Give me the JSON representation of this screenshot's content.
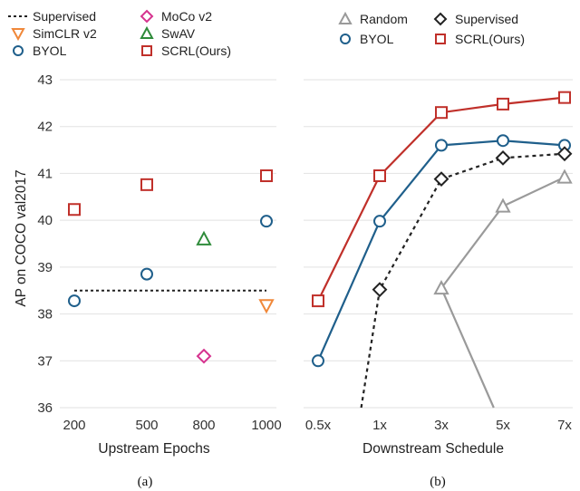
{
  "chart_data": [
    {
      "panel": "(a)",
      "type": "scatter",
      "xlabel": "Upstream Epochs",
      "ylabel": "AP on COCO val2017",
      "x_categories": [
        "200",
        "500",
        "800",
        "1000"
      ],
      "ylim": [
        36,
        43
      ],
      "yticks": [
        "36",
        "37",
        "38",
        "39",
        "40",
        "41",
        "42",
        "43"
      ],
      "grid": "horizontal",
      "legend": [
        {
          "name": "Supervised",
          "marker": "dashed-line",
          "color": "#222222"
        },
        {
          "name": "MoCo v2",
          "marker": "diamond",
          "color": "#d6338f"
        },
        {
          "name": "SimCLR v2",
          "marker": "triangle-down",
          "color": "#f0883a"
        },
        {
          "name": "SwAV",
          "marker": "triangle-up",
          "color": "#2e8b3a"
        },
        {
          "name": "BYOL",
          "marker": "circle",
          "color": "#1f5f8b"
        },
        {
          "name": "SCRL(Ours)",
          "marker": "square",
          "color": "#c0302a"
        }
      ],
      "series": [
        {
          "name": "Supervised",
          "style": "hline",
          "y": 38.5,
          "x_from": "200",
          "x_to": "1000"
        },
        {
          "name": "BYOL",
          "points": [
            {
              "x": "200",
              "y": 38.28
            },
            {
              "x": "500",
              "y": 38.85
            },
            {
              "x": "1000",
              "y": 39.98
            }
          ]
        },
        {
          "name": "SCRL(Ours)",
          "points": [
            {
              "x": "200",
              "y": 40.23
            },
            {
              "x": "500",
              "y": 40.76
            },
            {
              "x": "1000",
              "y": 40.95
            }
          ]
        },
        {
          "name": "SwAV",
          "points": [
            {
              "x": "800",
              "y": 39.6
            }
          ]
        },
        {
          "name": "MoCo v2",
          "points": [
            {
              "x": "800",
              "y": 37.1
            }
          ]
        },
        {
          "name": "SimCLR v2",
          "points": [
            {
              "x": "1000",
              "y": 38.18
            }
          ]
        }
      ]
    },
    {
      "panel": "(b)",
      "type": "line",
      "xlabel": "Downstream Schedule",
      "x_categories": [
        "0.5x",
        "1x",
        "3x",
        "5x",
        "7x"
      ],
      "ylim": [
        36,
        43
      ],
      "grid": "horizontal",
      "legend": [
        {
          "name": "Random",
          "marker": "triangle-up",
          "color": "#9a9a9a"
        },
        {
          "name": "Supervised",
          "marker": "diamond",
          "color": "#222222"
        },
        {
          "name": "BYOL",
          "marker": "circle",
          "color": "#1f5f8b"
        },
        {
          "name": "SCRL(Ours)",
          "marker": "square",
          "color": "#c0302a"
        }
      ],
      "series": [
        {
          "name": "SCRL(Ours)",
          "values": [
            38.28,
            40.95,
            42.3,
            42.48,
            42.62
          ]
        },
        {
          "name": "BYOL",
          "values": [
            37.0,
            39.98,
            41.6,
            41.7,
            41.6
          ]
        },
        {
          "name": "Supervised",
          "values": [
            null,
            38.52,
            40.88,
            41.33,
            41.42
          ],
          "dashed": true,
          "line_start": [
            0.7,
            36.0
          ]
        },
        {
          "name": "Random",
          "values": [
            null,
            null,
            38.55,
            40.3,
            40.92
          ],
          "line_start": [
            2.85,
            36.0
          ]
        }
      ]
    }
  ],
  "captions": [
    "(a)",
    "(b)"
  ]
}
